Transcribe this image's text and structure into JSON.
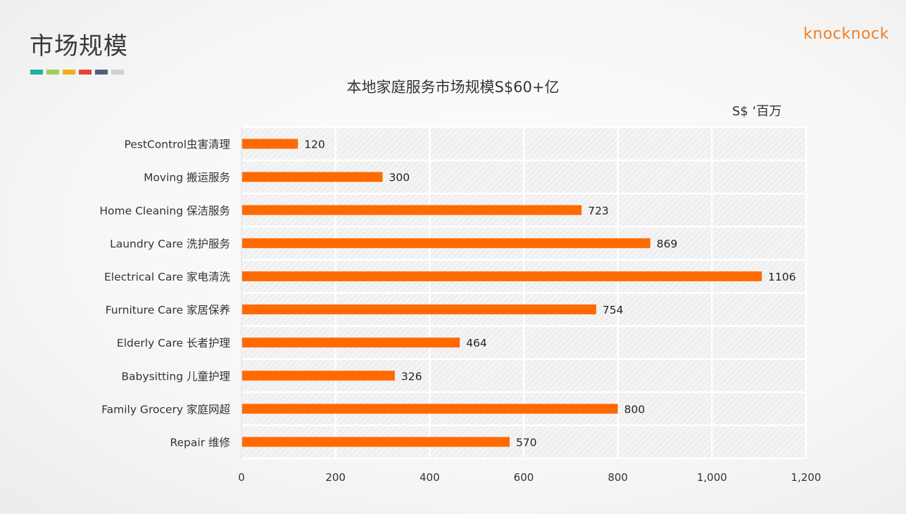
{
  "page": {
    "title": "市场规模",
    "logo": "knocknock",
    "accent_colors": [
      "#1bb39c",
      "#9ecd5a",
      "#f4ad18",
      "#e0443a",
      "#4e6179",
      "#cfd2d3"
    ]
  },
  "chart_data": {
    "type": "bar",
    "orientation": "horizontal",
    "title": "本地家庭服务市场规模S$60+亿",
    "unit_label": "S$ ‘百万",
    "categories": [
      "PestControl虫害清理",
      "Moving 搬运服务",
      "Home Cleaning 保洁服务",
      "Laundry Care 洗护服务",
      "Electrical Care 家电清洗",
      "Furniture Care 家居保养",
      "Elderly Care 长者护理",
      "Babysitting 儿童护理",
      "Family Grocery 家庭网超",
      "Repair 维修"
    ],
    "values": [
      120,
      300,
      723,
      869,
      1106,
      754,
      464,
      326,
      800,
      570
    ],
    "value_labels": [
      "120",
      "300",
      "723",
      "869",
      "1106",
      "754",
      "464",
      "326",
      "800",
      "570"
    ],
    "xlim": [
      0,
      1200
    ],
    "xticks": [
      0,
      200,
      400,
      600,
      800,
      1000,
      1200
    ],
    "xtick_labels": [
      "0",
      "200",
      "400",
      "600",
      "800",
      "1,000",
      "1,200"
    ],
    "bar_color": "#ff6a00",
    "grid": true,
    "legend": "none"
  }
}
